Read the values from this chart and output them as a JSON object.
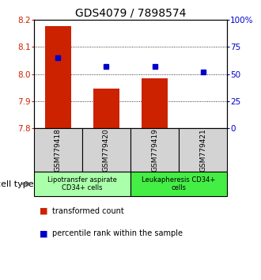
{
  "title": "GDS4079 / 7898574",
  "samples": [
    "GSM779418",
    "GSM779420",
    "GSM779419",
    "GSM779421"
  ],
  "transformed_counts": [
    8.175,
    7.945,
    7.985,
    7.802
  ],
  "percentile_ranks": [
    65,
    57,
    57,
    52
  ],
  "ylim_left": [
    7.8,
    8.2
  ],
  "ylim_right": [
    0,
    100
  ],
  "yticks_left": [
    7.8,
    7.9,
    8.0,
    8.1,
    8.2
  ],
  "yticks_right": [
    0,
    25,
    50,
    75,
    100
  ],
  "ytick_labels_right": [
    "0",
    "25",
    "50",
    "75",
    "100%"
  ],
  "bar_color": "#cc2200",
  "dot_color": "#0000cc",
  "bar_width": 0.55,
  "groups": [
    {
      "label": "Lipotransfer aspirate\nCD34+ cells",
      "color": "#aaffaa",
      "indices": [
        0,
        1
      ]
    },
    {
      "label": "Leukapheresis CD34+\ncells",
      "color": "#44ee44",
      "indices": [
        2,
        3
      ]
    }
  ],
  "cell_type_label": "cell type",
  "legend_bar_label": "transformed count",
  "legend_dot_label": "percentile rank within the sample",
  "background_color": "#ffffff",
  "sample_bg": "#d3d3d3",
  "title_fontsize": 10,
  "tick_fontsize": 7.5,
  "sample_fontsize": 6.5,
  "group_fontsize": 6,
  "legend_fontsize": 7
}
